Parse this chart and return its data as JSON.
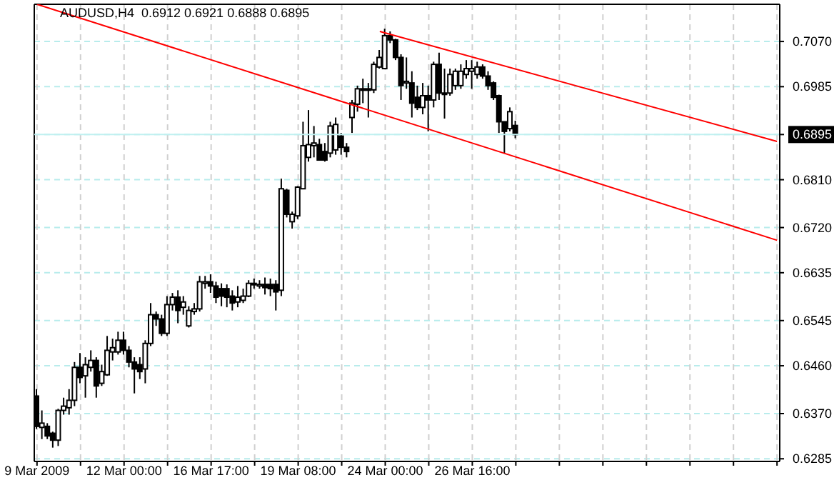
{
  "chart_data": {
    "type": "candlestick",
    "title": "AUDUSD,H4  0.6912 0.6921 0.6888 0.6895",
    "categories": [
      "9 Mar 2009",
      null,
      null,
      null,
      null,
      null,
      null,
      null,
      null,
      null,
      null,
      null,
      null,
      null,
      null,
      null,
      "12 Mar 00:00",
      null,
      null,
      null,
      null,
      null,
      null,
      null,
      null,
      null,
      null,
      null,
      null,
      null,
      null,
      null,
      "16 Mar 17:00",
      null,
      null,
      null,
      null,
      null,
      null,
      null,
      null,
      null,
      null,
      null,
      null,
      null,
      null,
      null,
      "19 Mar 08:00",
      null,
      null,
      null,
      null,
      null,
      null,
      null,
      null,
      null,
      null,
      null,
      null,
      null,
      null,
      null,
      "24 Mar 00:00",
      null,
      null,
      null,
      null,
      null,
      null,
      null,
      null,
      null,
      null,
      null,
      null,
      null,
      null,
      null,
      "26 Mar 16:00",
      null,
      null,
      null,
      null,
      null,
      null,
      null,
      null,
      null,
      null,
      null,
      null,
      null,
      null,
      null,
      null,
      null,
      null,
      null,
      null,
      null,
      null,
      null,
      null,
      null,
      null,
      null,
      null,
      null,
      null,
      null,
      null,
      null,
      null,
      null,
      null,
      null,
      null,
      null,
      null,
      null,
      null,
      null,
      null,
      null,
      null,
      null,
      null,
      null,
      null,
      null,
      null,
      null,
      null,
      null,
      null
    ],
    "ohlc": [
      [
        0.6403,
        0.6416,
        0.6341,
        0.6346
      ],
      [
        0.6344,
        0.6376,
        0.6322,
        0.6352
      ],
      [
        0.6346,
        0.6352,
        0.6322,
        0.6328
      ],
      [
        0.6333,
        0.6336,
        0.6306,
        0.632
      ],
      [
        0.632,
        0.6379,
        0.6309,
        0.6376
      ],
      [
        0.6376,
        0.64,
        0.6368,
        0.6384
      ],
      [
        0.6381,
        0.6416,
        0.6368,
        0.6395
      ],
      [
        0.6395,
        0.6467,
        0.6384,
        0.6457
      ],
      [
        0.6457,
        0.6484,
        0.6427,
        0.6438
      ],
      [
        0.6441,
        0.6476,
        0.64,
        0.6462
      ],
      [
        0.6457,
        0.6489,
        0.6449,
        0.647
      ],
      [
        0.647,
        0.6476,
        0.64,
        0.6422
      ],
      [
        0.6427,
        0.6462,
        0.6422,
        0.6449
      ],
      [
        0.6443,
        0.6516,
        0.6441,
        0.6489
      ],
      [
        0.6486,
        0.6511,
        0.647,
        0.6494
      ],
      [
        0.6486,
        0.6524,
        0.6481,
        0.6508
      ],
      [
        0.6508,
        0.6524,
        0.6481,
        0.6489
      ],
      [
        0.6489,
        0.6497,
        0.6457,
        0.6467
      ],
      [
        0.6467,
        0.6476,
        0.6408,
        0.6454
      ],
      [
        0.6462,
        0.6476,
        0.6435,
        0.6449
      ],
      [
        0.6454,
        0.6508,
        0.6427,
        0.6502
      ],
      [
        0.6502,
        0.6578,
        0.6497,
        0.6556
      ],
      [
        0.6556,
        0.6562,
        0.6535,
        0.6548
      ],
      [
        0.6548,
        0.6556,
        0.6516,
        0.6521
      ],
      [
        0.6521,
        0.6591,
        0.6516,
        0.6575
      ],
      [
        0.6575,
        0.6597,
        0.6564,
        0.6589
      ],
      [
        0.6589,
        0.6602,
        0.654,
        0.6564
      ],
      [
        0.657,
        0.6591,
        0.6556,
        0.658
      ],
      [
        0.6535,
        0.6572,
        0.6532,
        0.6564
      ],
      [
        0.6562,
        0.6578,
        0.6556,
        0.6567
      ],
      [
        0.6567,
        0.6629,
        0.6562,
        0.6618
      ],
      [
        0.6615,
        0.6629,
        0.6605,
        0.6618
      ],
      [
        0.6618,
        0.6632,
        0.6597,
        0.661
      ],
      [
        0.661,
        0.6618,
        0.6578,
        0.6589
      ],
      [
        0.6605,
        0.6615,
        0.6572,
        0.6591
      ],
      [
        0.6605,
        0.6613,
        0.657,
        0.6589
      ],
      [
        0.6591,
        0.6602,
        0.6564,
        0.6578
      ],
      [
        0.658,
        0.661,
        0.657,
        0.6589
      ],
      [
        0.6583,
        0.6605,
        0.6578,
        0.6591
      ],
      [
        0.6591,
        0.6621,
        0.6589,
        0.6615
      ],
      [
        0.6613,
        0.6624,
        0.6605,
        0.6615
      ],
      [
        0.661,
        0.6621,
        0.6605,
        0.6613
      ],
      [
        0.6613,
        0.6626,
        0.6594,
        0.6607
      ],
      [
        0.6613,
        0.6624,
        0.6591,
        0.6605
      ],
      [
        0.6613,
        0.6621,
        0.6564,
        0.6599
      ],
      [
        0.6602,
        0.6812,
        0.6591,
        0.6793
      ],
      [
        0.679,
        0.6793,
        0.6739,
        0.6745
      ],
      [
        0.6731,
        0.675,
        0.6718,
        0.6745
      ],
      [
        0.6742,
        0.6798,
        0.6736,
        0.6796
      ],
      [
        0.6793,
        0.6919,
        0.6793,
        0.6874
      ],
      [
        0.6852,
        0.6941,
        0.6844,
        0.6876
      ],
      [
        0.6874,
        0.6911,
        0.6852,
        0.6879
      ],
      [
        0.6876,
        0.6887,
        0.6847,
        0.6847
      ],
      [
        0.6863,
        0.6879,
        0.6844,
        0.6847
      ],
      [
        0.686,
        0.6919,
        0.6852,
        0.6911
      ],
      [
        0.6866,
        0.6927,
        0.6857,
        0.6914
      ],
      [
        0.6892,
        0.6898,
        0.6857,
        0.6871
      ],
      [
        0.6871,
        0.6879,
        0.6852,
        0.6863
      ],
      [
        0.6927,
        0.696,
        0.6898,
        0.6954
      ],
      [
        0.6952,
        0.6987,
        0.6938,
        0.6981
      ],
      [
        0.6979,
        0.7,
        0.6954,
        0.6981
      ],
      [
        0.6981,
        0.6992,
        0.6927,
        0.6979
      ],
      [
        0.6979,
        0.7032,
        0.6973,
        0.7027
      ],
      [
        0.7022,
        0.7054,
        0.7019,
        0.704
      ],
      [
        0.7019,
        0.7094,
        0.7019,
        0.7081
      ],
      [
        0.7081,
        0.7089,
        0.7067,
        0.7073
      ],
      [
        0.7073,
        0.7075,
        0.7035,
        0.704
      ],
      [
        0.704,
        0.7046,
        0.696,
        0.6987
      ],
      [
        0.6992,
        0.704,
        0.6981,
        0.6995
      ],
      [
        0.6992,
        0.7014,
        0.6927,
        0.6954
      ],
      [
        0.6965,
        0.6987,
        0.6941,
        0.6946
      ],
      [
        0.6946,
        0.6992,
        0.6933,
        0.6968
      ],
      [
        0.6968,
        0.6987,
        0.6901,
        0.696
      ],
      [
        0.696,
        0.7032,
        0.6946,
        0.7027
      ],
      [
        0.7027,
        0.7049,
        0.696,
        0.6973
      ],
      [
        0.6973,
        0.7019,
        0.6925,
        0.6971
      ],
      [
        0.6973,
        0.7019,
        0.6968,
        0.7008
      ],
      [
        0.6987,
        0.7019,
        0.6979,
        0.7014
      ],
      [
        0.6987,
        0.7027,
        0.6981,
        0.7014
      ],
      [
        0.7008,
        0.7035,
        0.7,
        0.7019
      ],
      [
        0.7014,
        0.7035,
        0.6981,
        0.7019
      ],
      [
        0.7008,
        0.7032,
        0.7,
        0.7022
      ],
      [
        0.7022,
        0.7027,
        0.7,
        0.7005
      ],
      [
        0.7005,
        0.7014,
        0.6979,
        0.6987
      ],
      [
        0.6992,
        0.6995,
        0.696,
        0.6965
      ],
      [
        0.6968,
        0.697,
        0.6898,
        0.6919
      ],
      [
        0.6919,
        0.6919,
        0.686,
        0.6901
      ],
      [
        0.6906,
        0.6946,
        0.6901,
        0.6938
      ],
      [
        0.6912,
        0.6921,
        0.6888,
        0.6895
      ],
      null,
      null,
      null,
      null,
      null,
      null,
      null,
      null,
      null,
      null,
      null,
      null,
      null,
      null,
      null,
      null,
      null,
      null,
      null,
      null,
      null,
      null,
      null,
      null,
      null,
      null,
      null,
      null,
      null,
      null,
      null,
      null,
      null,
      null,
      null,
      null,
      null,
      null,
      null,
      null,
      null,
      null,
      null,
      null,
      null,
      null,
      null,
      null
    ],
    "series": [
      {
        "type": "line",
        "color": "#ff0000",
        "values": [
          null,
          null,
          null,
          null,
          null,
          null,
          null,
          null,
          null,
          null,
          null,
          null,
          null,
          null,
          null,
          null,
          null,
          null,
          null,
          null,
          null,
          null,
          null,
          null,
          null,
          null,
          null,
          null,
          null,
          null,
          null,
          null,
          null,
          null,
          null,
          null,
          null,
          null,
          null,
          null,
          null,
          null,
          null,
          null,
          null,
          null,
          null,
          null,
          null,
          null,
          null,
          null,
          null,
          null,
          null,
          null,
          null,
          null,
          null,
          null,
          null,
          null,
          null,
          0.7089,
          null,
          null,
          null,
          null,
          null,
          null,
          null,
          null,
          null,
          null,
          null,
          null,
          null,
          null,
          null,
          null,
          null,
          null,
          null,
          null,
          null,
          null,
          null,
          null,
          null,
          null,
          null,
          null,
          null,
          null,
          null,
          null,
          null,
          null,
          null,
          null,
          null,
          null,
          null,
          null,
          null,
          null,
          null,
          null,
          null,
          null,
          null,
          null,
          null,
          null,
          null,
          null,
          null,
          null,
          null,
          null,
          null,
          null,
          null,
          null,
          null,
          null,
          null,
          null,
          null,
          null,
          null,
          null,
          null,
          null,
          null,
          null,
          0.6882
        ]
      },
      {
        "type": "line",
        "color": "#ff0000",
        "values": [
          0.714,
          null,
          null,
          null,
          null,
          null,
          null,
          null,
          null,
          null,
          null,
          null,
          null,
          null,
          null,
          null,
          null,
          null,
          null,
          null,
          null,
          null,
          null,
          null,
          null,
          null,
          null,
          null,
          null,
          null,
          null,
          null,
          null,
          null,
          null,
          null,
          null,
          null,
          null,
          null,
          null,
          null,
          null,
          null,
          null,
          null,
          null,
          null,
          null,
          null,
          null,
          null,
          null,
          null,
          null,
          null,
          null,
          null,
          null,
          null,
          null,
          null,
          null,
          null,
          null,
          null,
          null,
          null,
          null,
          null,
          null,
          null,
          null,
          null,
          null,
          null,
          null,
          null,
          null,
          null,
          null,
          null,
          null,
          null,
          null,
          null,
          null,
          null,
          null,
          null,
          null,
          null,
          null,
          null,
          null,
          null,
          null,
          null,
          null,
          null,
          null,
          null,
          null,
          null,
          null,
          null,
          null,
          null,
          null,
          null,
          null,
          null,
          null,
          null,
          null,
          null,
          null,
          null,
          null,
          null,
          null,
          null,
          null,
          null,
          null,
          null,
          null,
          null,
          null,
          null,
          null,
          null,
          null,
          null,
          null,
          null,
          0.6696
        ]
      }
    ],
    "ylim": [
      0.628,
      0.714
    ],
    "yticks": [
      {
        "value": 0.707,
        "label": "0.7070"
      },
      {
        "value": 0.6985,
        "label": "0.6985"
      },
      {
        "value": 0.6895,
        "label": "0.6895"
      },
      {
        "value": 0.681,
        "label": "0.6810"
      },
      {
        "value": 0.672,
        "label": "0.6720"
      },
      {
        "value": 0.6635,
        "label": "0.6635"
      },
      {
        "value": 0.6545,
        "label": "0.6545"
      },
      {
        "value": 0.646,
        "label": "0.6460"
      },
      {
        "value": 0.637,
        "label": "0.6370"
      },
      {
        "value": 0.6285,
        "label": "0.6285"
      }
    ],
    "ref_lines": [
      {
        "axis": "y",
        "value": 0.6895,
        "color": "#c0f0f0"
      }
    ],
    "grid": true
  }
}
